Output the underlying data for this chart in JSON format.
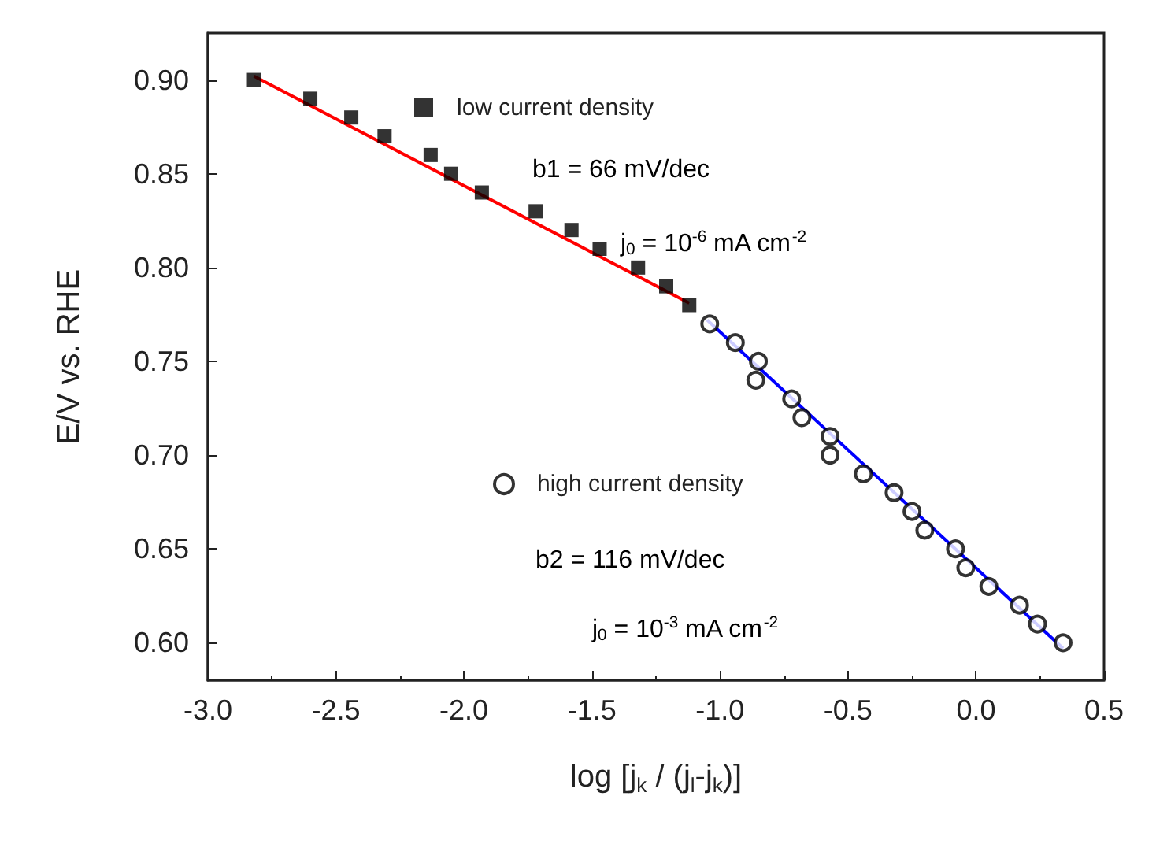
{
  "chart_data": {
    "type": "scatter",
    "xlabel": "log [j$_{k}$ / (j$_{l}$-j$_{k}$)]",
    "ylabel": "E/V vs. RHE",
    "xlim": [
      -3,
      0.5
    ],
    "xticks": [
      {
        "value": -3,
        "label": "-3.0"
      },
      {
        "value": -2.5,
        "label": "-2.5"
      },
      {
        "value": -2,
        "label": "-2.0"
      },
      {
        "value": -1.5,
        "label": "-1.5"
      },
      {
        "value": -1,
        "label": "-1.0"
      },
      {
        "value": -0.5,
        "label": "-0.5"
      },
      {
        "value": 0,
        "label": "0.0"
      },
      {
        "value": 0.5,
        "label": "0.5"
      }
    ],
    "ylim": [
      0.58,
      0.925
    ],
    "yticks": [
      {
        "value": 0.6,
        "label": "0.60"
      },
      0.65,
      {
        "value": 0.7,
        "label": "0.70"
      },
      0.75,
      {
        "value": 0.8,
        "label": "0.80"
      },
      0.85,
      {
        "value": 0.9,
        "label": "0.90"
      }
    ],
    "grid": false,
    "legend": "top",
    "series": [
      {
        "name": "low current density",
        "marker": "square",
        "color": "#000000",
        "x": [
          -2.82,
          -2.6,
          -2.44,
          -2.31,
          -2.13,
          -2.05,
          -1.93,
          -1.72,
          -1.58,
          -1.47,
          -1.32,
          -1.21,
          -1.12
        ],
        "values": [
          0.9,
          0.89,
          0.88,
          0.87,
          0.86,
          0.85,
          0.84,
          0.83,
          0.82,
          0.81,
          0.8,
          0.79,
          0.78
        ]
      },
      {
        "name": "high current density",
        "marker": "circle",
        "color": "#000000",
        "x": [
          -1.04,
          -0.94,
          -0.85,
          -0.86,
          -0.72,
          -0.68,
          -0.57,
          -0.57,
          -0.44,
          -0.32,
          -0.25,
          -0.2,
          -0.08,
          -0.04,
          0.05,
          0.17,
          0.24,
          0.34
        ],
        "values": [
          0.77,
          0.76,
          0.75,
          0.74,
          0.73,
          0.72,
          0.71,
          0.7,
          0.69,
          0.68,
          0.67,
          0.66,
          0.65,
          0.64,
          0.63,
          0.62,
          0.61,
          0.6
        ]
      },
      {
        "type": "line",
        "marker": "none",
        "color": "#ff0000",
        "x": [
          -2.82,
          -1.12
        ],
        "values": [
          0.902,
          0.781
        ]
      },
      {
        "type": "line",
        "marker": "none",
        "color": "#0000ff",
        "x": [
          -1.05,
          0.34
        ],
        "values": [
          0.772,
          0.597
        ]
      }
    ],
    "annotations": [
      "b1 = 66 mV/dec",
      "j$_{0}$ = 10$^{-6}$ mA cm$^{-2}$",
      "b2 = 116 mV/dec",
      "j$_{0}$ = 10$^{-3}$ mA cm$^{-2}$"
    ]
  }
}
